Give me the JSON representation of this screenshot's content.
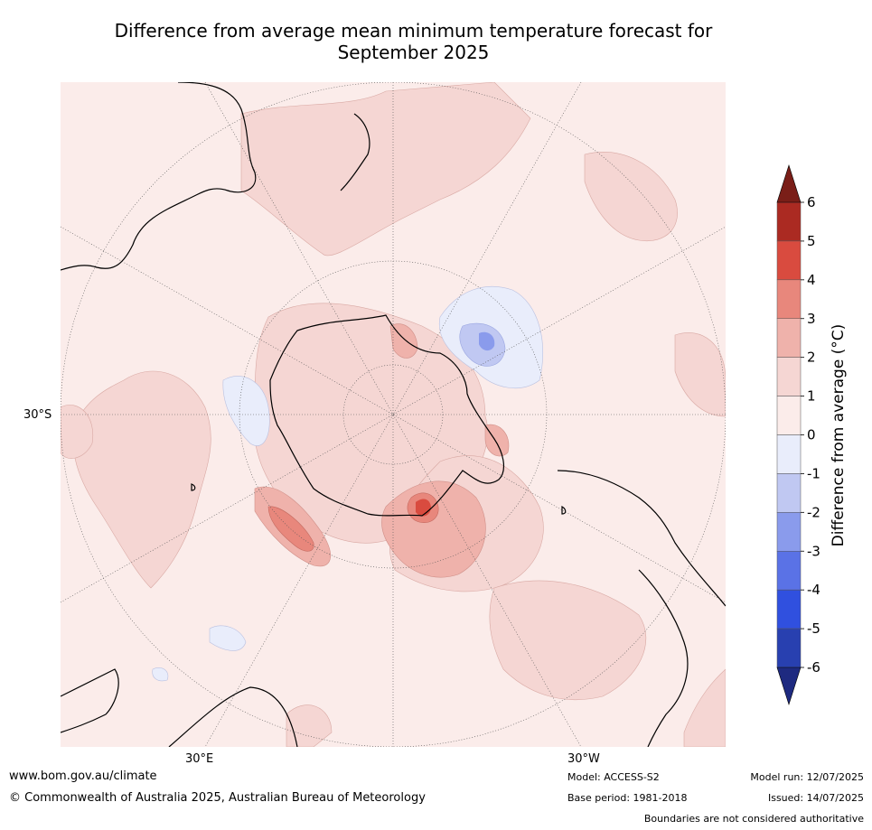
{
  "title": {
    "line1": "Difference from average mean minimum temperature forecast for",
    "line2": "September 2025"
  },
  "axis_labels": {
    "lat_30s": "30°S",
    "lon_30e": "30°E",
    "lon_30w": "30°W"
  },
  "colorbar": {
    "title": "Difference from average (°C)",
    "ticks": [
      "6",
      "5",
      "4",
      "3",
      "2",
      "1",
      "0",
      "-1",
      "-2",
      "-3",
      "-4",
      "-5",
      "-6"
    ],
    "colors_top_to_bottom": [
      "#ab2a22",
      "#d94b3f",
      "#e8877c",
      "#efb2ab",
      "#f5d6d3",
      "#fbecea",
      "#e9edfb",
      "#c0c8f2",
      "#8a9bec",
      "#5a72e6",
      "#3050df",
      "#2840b0"
    ],
    "over_color": "#7a1e18",
    "under_color": "#1e2a80"
  },
  "footer": {
    "website": "www.bom.gov.au/climate",
    "copyright": "© Commonwealth of Australia 2025, Australian Bureau of Meteorology",
    "model": "Model: ACCESS-S2",
    "base_period": "Base period: 1981-2018",
    "model_run": "Model run: 12/07/2025",
    "issued": "Issued: 14/07/2025",
    "disclaimer": "Boundaries are not considered authoritative"
  }
}
